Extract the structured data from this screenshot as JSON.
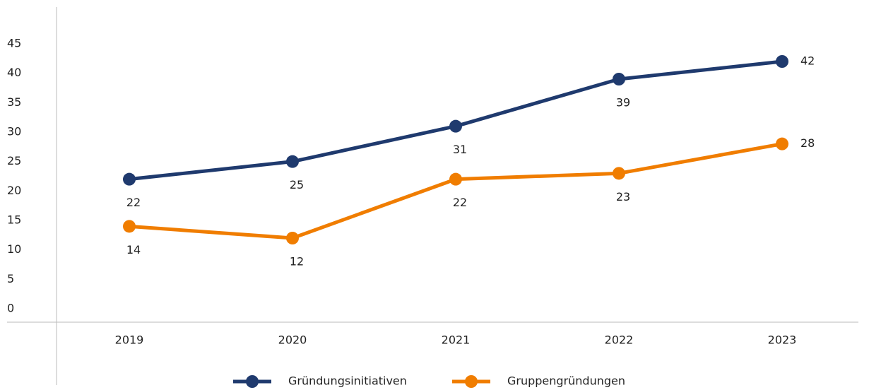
{
  "chart_data": {
    "type": "line",
    "categories": [
      "2019",
      "2020",
      "2021",
      "2022",
      "2023"
    ],
    "series": [
      {
        "name": "Gründungsinitiativen",
        "color": "#1f3a6e",
        "values": [
          22,
          25,
          31,
          39,
          42
        ]
      },
      {
        "name": "Gruppengründungen",
        "color": "#f07d00",
        "values": [
          14,
          12,
          22,
          23,
          28
        ]
      }
    ],
    "ylim": [
      0,
      45
    ],
    "yticks": [
      0,
      5,
      10,
      15,
      20,
      25,
      30,
      35,
      40,
      45
    ],
    "grid": false,
    "legend": "bottom"
  }
}
